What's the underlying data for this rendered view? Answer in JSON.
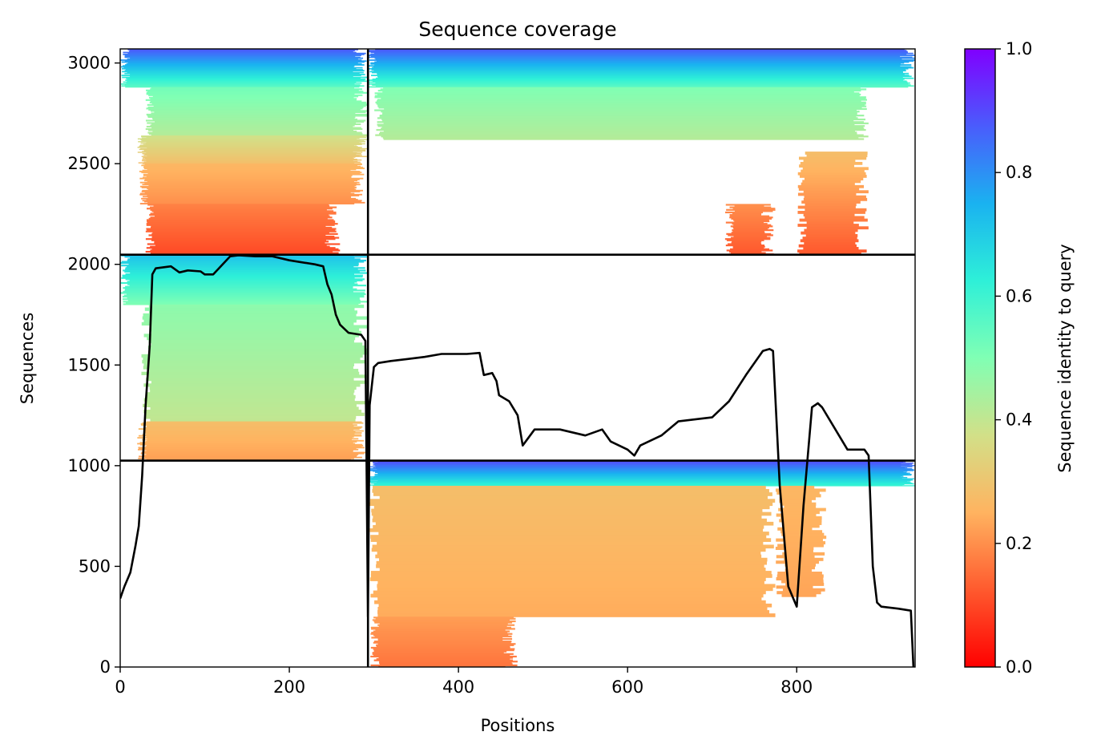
{
  "chart_data": {
    "type": "heatmap",
    "title": "Sequence coverage",
    "xlabel": "Positions",
    "ylabel": "Sequences",
    "xlim": [
      0,
      940
    ],
    "ylim": [
      0,
      3070
    ],
    "xticks": [
      0,
      200,
      400,
      600,
      800
    ],
    "xtick_labels": [
      "0",
      "200",
      "400",
      "600",
      "800"
    ],
    "yticks": [
      0,
      500,
      1000,
      1500,
      2000,
      2500,
      3000
    ],
    "ytick_labels": [
      "0",
      "500",
      "1000",
      "1500",
      "2000",
      "2500",
      "3000"
    ],
    "colorbar": {
      "label": "Sequence identity to query",
      "colormap": "rainbow_r",
      "range": [
        0,
        1
      ],
      "ticks": [
        0.0,
        0.2,
        0.4,
        0.6,
        0.8,
        1.0
      ],
      "tick_labels": [
        "0.0",
        "0.2",
        "0.4",
        "0.6",
        "0.8",
        "1.0"
      ]
    },
    "divider_lines": {
      "vertical_x": [
        293
      ],
      "horizontal_y": [
        1025,
        2048
      ]
    },
    "blocks": [
      {
        "name": "block-top-left",
        "x_range": [
          0,
          293
        ],
        "y_range": [
          2048,
          3070
        ],
        "bands": [
          {
            "y": [
              2880,
              3070
            ],
            "identity_top": 0.88,
            "identity_bottom": 0.55,
            "x": [
              0,
              293
            ]
          },
          {
            "y": [
              2640,
              2880
            ],
            "identity_top": 0.52,
            "identity_bottom": 0.42,
            "x": [
              30,
              293
            ]
          },
          {
            "y": [
              2500,
              2640
            ],
            "identity_top": 0.38,
            "identity_bottom": 0.28,
            "x": [
              20,
              293
            ]
          },
          {
            "y": [
              2300,
              2500
            ],
            "identity_top": 0.26,
            "identity_bottom": 0.2,
            "x": [
              22,
              290
            ]
          },
          {
            "y": [
              2048,
              2300
            ],
            "identity_top": 0.18,
            "identity_bottom": 0.1,
            "x": [
              30,
              260
            ]
          }
        ]
      },
      {
        "name": "block-top-right",
        "x_range": [
          293,
          940
        ],
        "y_range": [
          2048,
          3070
        ],
        "bands": [
          {
            "y": [
              2880,
              3070
            ],
            "identity_top": 0.88,
            "identity_bottom": 0.55,
            "x": [
              293,
              940
            ]
          },
          {
            "y": [
              2620,
              2880
            ],
            "identity_top": 0.5,
            "identity_bottom": 0.42,
            "x": [
              300,
              885
            ]
          },
          {
            "y": [
              2048,
              2560
            ],
            "identity_top": 0.28,
            "identity_bottom": 0.12,
            "x": [
              800,
              885
            ]
          },
          {
            "y": [
              2048,
              2300
            ],
            "identity_top": 0.2,
            "identity_bottom": 0.12,
            "x": [
              715,
              775
            ]
          }
        ]
      },
      {
        "name": "block-middle-left",
        "x_range": [
          0,
          293
        ],
        "y_range": [
          1025,
          2048
        ],
        "bands": [
          {
            "y": [
              1800,
              2048
            ],
            "identity_top": 0.72,
            "identity_bottom": 0.5,
            "x": [
              0,
              293
            ]
          },
          {
            "y": [
              1220,
              1800
            ],
            "identity_top": 0.48,
            "identity_bottom": 0.4,
            "x": [
              25,
              293
            ]
          },
          {
            "y": [
              1025,
              1220
            ],
            "identity_top": 0.28,
            "identity_bottom": 0.22,
            "x": [
              20,
              290
            ]
          }
        ]
      },
      {
        "name": "block-bottom-right",
        "x_range": [
          293,
          940
        ],
        "y_range": [
          0,
          1025
        ],
        "bands": [
          {
            "y": [
              900,
              1025
            ],
            "identity_top": 0.9,
            "identity_bottom": 0.6,
            "x": [
              293,
              940
            ]
          },
          {
            "y": [
              250,
              900
            ],
            "identity_top": 0.28,
            "identity_bottom": 0.24,
            "x": [
              295,
              775
            ]
          },
          {
            "y": [
              350,
              900
            ],
            "identity_top": 0.26,
            "identity_bottom": 0.23,
            "x": [
              775,
              835
            ]
          },
          {
            "y": [
              0,
              250
            ],
            "identity_top": 0.22,
            "identity_bottom": 0.16,
            "x": [
              295,
              470
            ]
          }
        ]
      }
    ],
    "coverage_line": {
      "name": "coverage",
      "x": [
        0,
        5,
        10,
        12,
        18,
        22,
        26,
        30,
        35,
        38,
        42,
        60,
        70,
        80,
        95,
        100,
        110,
        130,
        140,
        160,
        180,
        200,
        230,
        240,
        245,
        250,
        255,
        260,
        270,
        285,
        290,
        293,
        295,
        300,
        305,
        320,
        340,
        360,
        380,
        410,
        425,
        430,
        440,
        445,
        448,
        460,
        470,
        476,
        490,
        520,
        550,
        570,
        580,
        600,
        608,
        615,
        640,
        660,
        700,
        720,
        740,
        760,
        768,
        772,
        780,
        790,
        800,
        808,
        818,
        825,
        830,
        860,
        880,
        885,
        890,
        895,
        900,
        920,
        935,
        938
      ],
      "y": [
        340,
        400,
        450,
        470,
        600,
        700,
        950,
        1300,
        1600,
        1950,
        1980,
        1990,
        1960,
        1970,
        1965,
        1950,
        1950,
        2040,
        2045,
        2040,
        2040,
        2020,
        2000,
        1990,
        1900,
        1850,
        1750,
        1700,
        1660,
        1650,
        1620,
        250,
        1300,
        1490,
        1510,
        1520,
        1530,
        1540,
        1555,
        1555,
        1560,
        1450,
        1460,
        1420,
        1350,
        1320,
        1250,
        1100,
        1180,
        1180,
        1150,
        1180,
        1120,
        1080,
        1050,
        1100,
        1150,
        1220,
        1240,
        1320,
        1450,
        1570,
        1580,
        1570,
        900,
        400,
        300,
        800,
        1290,
        1310,
        1290,
        1080,
        1080,
        1050,
        500,
        320,
        300,
        290,
        280,
        0
      ]
    }
  }
}
